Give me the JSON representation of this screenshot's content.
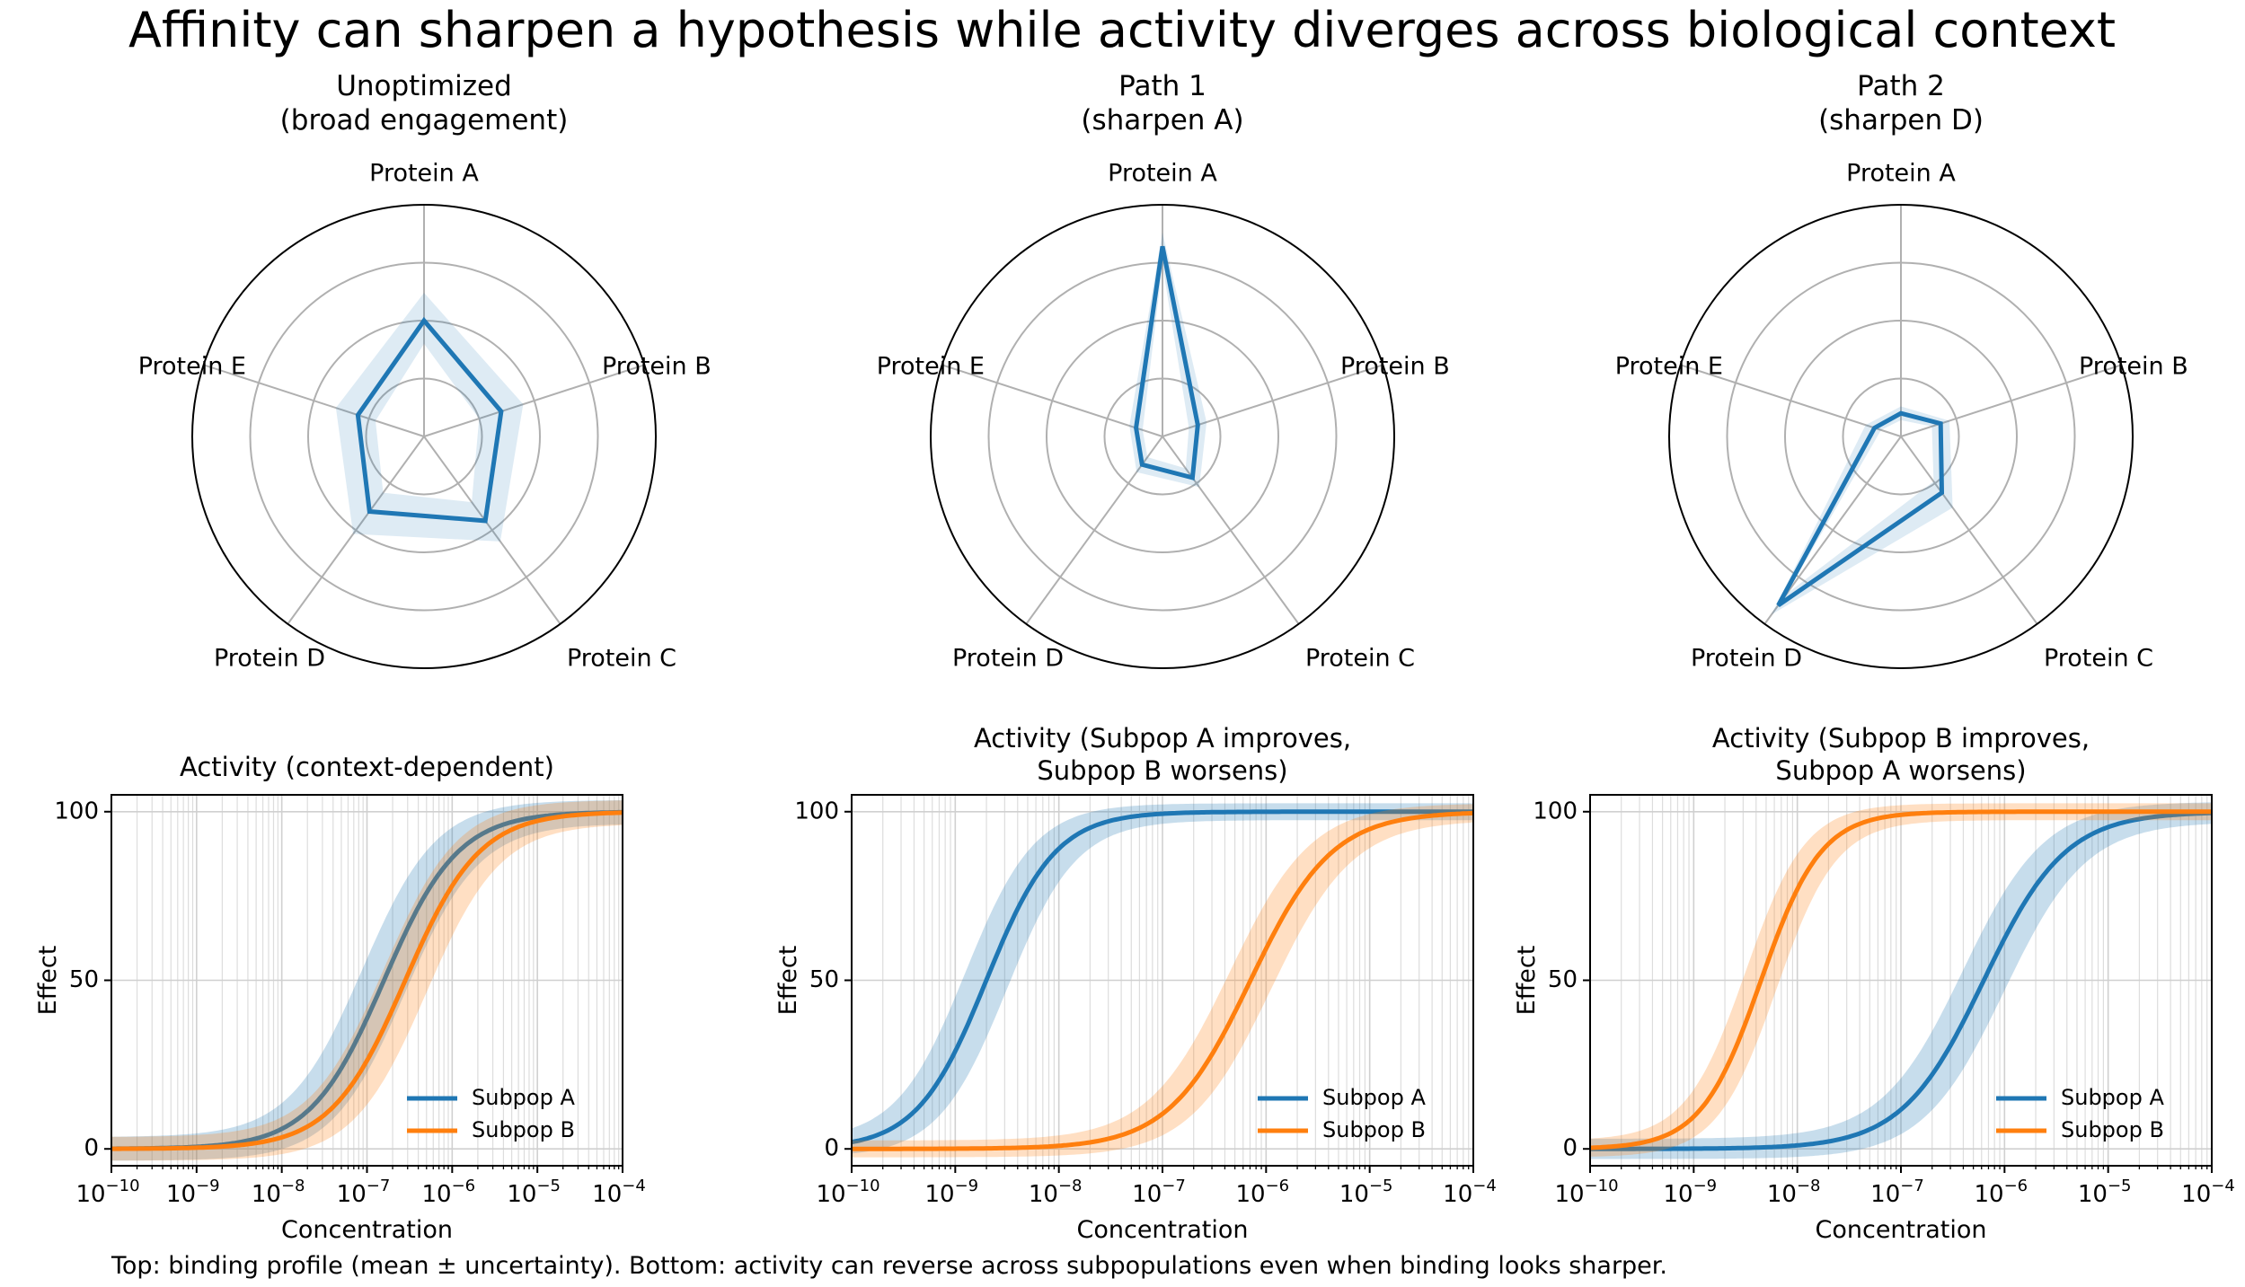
{
  "figure": {
    "title": "Affinity can sharpen a hypothesis while activity diverges across biological context",
    "footnote": "Top: binding profile (mean ± uncertainty). Bottom: activity can reverse across subpopulations even when binding looks sharper."
  },
  "colors": {
    "subpop_a": "#1f77b4",
    "subpop_b": "#ff7f0e",
    "grid": "#b0b0b0"
  },
  "chart_data": [
    {
      "type": "radar",
      "title_line1": "Unoptimized",
      "title_line2": "(broad engagement)",
      "axes": [
        "Protein A",
        "Protein B",
        "Protein C",
        "Protein D",
        "Protein E"
      ],
      "rmax": 1.0,
      "ring_values": [
        0.25,
        0.5,
        0.75,
        1.0
      ],
      "mean": [
        0.5,
        0.35,
        0.45,
        0.4,
        0.3
      ],
      "lower": [
        0.4,
        0.25,
        0.35,
        0.3,
        0.22
      ],
      "upper": [
        0.62,
        0.45,
        0.56,
        0.52,
        0.4
      ]
    },
    {
      "type": "radar",
      "title_line1": "Path 1",
      "title_line2": "(sharpen A)",
      "axes": [
        "Protein A",
        "Protein B",
        "Protein C",
        "Protein D",
        "Protein E"
      ],
      "rmax": 1.0,
      "ring_values": [
        0.25,
        0.5,
        0.75,
        1.0
      ],
      "mean": [
        0.82,
        0.16,
        0.22,
        0.15,
        0.12
      ],
      "lower": [
        0.74,
        0.12,
        0.17,
        0.11,
        0.09
      ],
      "upper": [
        0.88,
        0.2,
        0.27,
        0.19,
        0.15
      ]
    },
    {
      "type": "radar",
      "title_line1": "Path 2",
      "title_line2": "(sharpen D)",
      "axes": [
        "Protein A",
        "Protein B",
        "Protein C",
        "Protein D",
        "Protein E"
      ],
      "rmax": 1.0,
      "ring_values": [
        0.25,
        0.5,
        0.75,
        1.0
      ],
      "mean": [
        0.1,
        0.18,
        0.3,
        0.9,
        0.12
      ],
      "lower": [
        0.07,
        0.14,
        0.24,
        0.84,
        0.09
      ],
      "upper": [
        0.13,
        0.22,
        0.38,
        0.95,
        0.16
      ]
    },
    {
      "type": "line",
      "title_line1": "Activity (context-dependent)",
      "title_line2": "",
      "xlabel": "Concentration",
      "ylabel": "Effect",
      "xscale": "log",
      "xlim_exp": [
        -10,
        -4
      ],
      "ylim": [
        -5,
        105
      ],
      "yticks": [
        0,
        50,
        100
      ],
      "xtick_labels": [
        "10",
        "10",
        "10",
        "10",
        "10",
        "10",
        "10"
      ],
      "xtick_exponents": [
        "−10",
        "−9",
        "−8",
        "−7",
        "−6",
        "−5",
        "−4"
      ],
      "legend_position": "lower-right",
      "series": [
        {
          "name": "Subpop A",
          "log_ec50": -6.8,
          "hill": 1.0,
          "band": 3.5,
          "band_log": 0.25
        },
        {
          "name": "Subpop B",
          "log_ec50": -6.55,
          "hill": 1.0,
          "band": 3.5,
          "band_log": 0.25
        }
      ]
    },
    {
      "type": "line",
      "title_line1": "Activity (Subpop A improves,",
      "title_line2": "Subpop B worsens)",
      "xlabel": "Concentration",
      "ylabel": "Effect",
      "xscale": "log",
      "xlim_exp": [
        -10,
        -4
      ],
      "ylim": [
        -5,
        105
      ],
      "yticks": [
        0,
        50,
        100
      ],
      "xtick_labels": [
        "10",
        "10",
        "10",
        "10",
        "10",
        "10",
        "10"
      ],
      "xtick_exponents": [
        "−10",
        "−9",
        "−8",
        "−7",
        "−6",
        "−5",
        "−4"
      ],
      "legend_position": "lower-right",
      "series": [
        {
          "name": "Subpop A",
          "log_ec50": -8.7,
          "hill": 1.3,
          "band": 2.5,
          "band_log": 0.2
        },
        {
          "name": "Subpop B",
          "log_ec50": -6.15,
          "hill": 1.1,
          "band": 2.5,
          "band_log": 0.2
        }
      ]
    },
    {
      "type": "line",
      "title_line1": "Activity (Subpop B improves,",
      "title_line2": "Subpop A worsens)",
      "xlabel": "Concentration",
      "ylabel": "Effect",
      "xscale": "log",
      "xlim_exp": [
        -10,
        -4
      ],
      "ylim": [
        -5,
        105
      ],
      "yticks": [
        0,
        50,
        100
      ],
      "xtick_labels": [
        "10",
        "10",
        "10",
        "10",
        "10",
        "10",
        "10"
      ],
      "xtick_exponents": [
        "−10",
        "−9",
        "−8",
        "−7",
        "−6",
        "−5",
        "−4"
      ],
      "legend_position": "lower-right",
      "series": [
        {
          "name": "Subpop A",
          "log_ec50": -6.2,
          "hill": 1.1,
          "band": 3.0,
          "band_log": 0.2
        },
        {
          "name": "Subpop B",
          "log_ec50": -8.35,
          "hill": 1.5,
          "band": 2.5,
          "band_log": 0.15
        }
      ]
    }
  ]
}
